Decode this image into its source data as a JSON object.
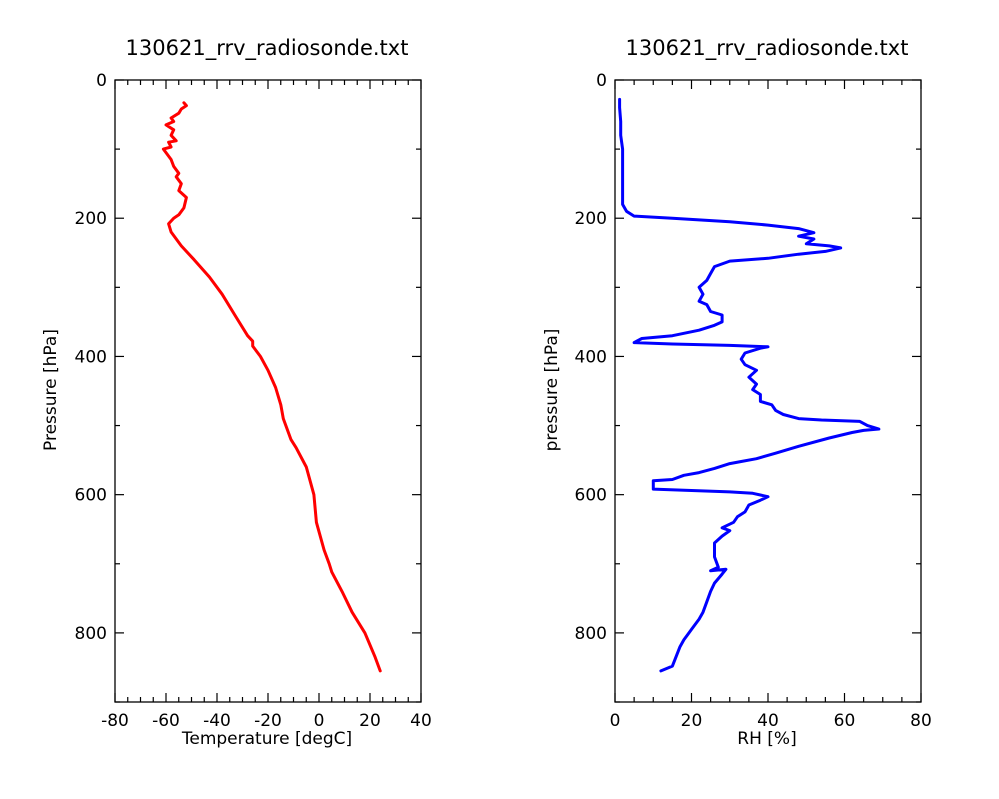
{
  "chart_data": [
    {
      "type": "line",
      "title": "130621_rrv_radiosonde.txt",
      "xlabel": "Temperature [degC]",
      "ylabel": "Pressure [hPa]",
      "xlim": [
        -80,
        40
      ],
      "ylim": [
        900,
        0
      ],
      "y_inverted": true,
      "grid": false,
      "xticks": [
        -80,
        -60,
        -40,
        -20,
        0,
        20,
        40
      ],
      "yticks": [
        0,
        200,
        400,
        600,
        800
      ],
      "series": [
        {
          "color": "#ff0000",
          "points": [
            [
              24,
              855
            ],
            [
              22,
              835
            ],
            [
              18,
              800
            ],
            [
              13,
              770
            ],
            [
              9,
              740
            ],
            [
              5,
              712
            ],
            [
              4,
              700
            ],
            [
              2,
              680
            ],
            [
              -1,
              640
            ],
            [
              -2,
              600
            ],
            [
              -5,
              560
            ],
            [
              -9,
              532
            ],
            [
              -11,
              520
            ],
            [
              -14,
              490
            ],
            [
              -15,
              470
            ],
            [
              -17,
              445
            ],
            [
              -20,
              420
            ],
            [
              -23,
              400
            ],
            [
              -26,
              385
            ],
            [
              -26,
              378
            ],
            [
              -28,
              370
            ],
            [
              -33,
              340
            ],
            [
              -38,
              310
            ],
            [
              -43,
              285
            ],
            [
              -49,
              260
            ],
            [
              -54,
              240
            ],
            [
              -58,
              220
            ],
            [
              -59,
              208
            ],
            [
              -57,
              200
            ],
            [
              -55,
              195
            ],
            [
              -53,
              185
            ],
            [
              -52,
              170
            ],
            [
              -55,
              160
            ],
            [
              -54,
              150
            ],
            [
              -56,
              140
            ],
            [
              -55,
              135
            ],
            [
              -57,
              125
            ],
            [
              -58,
              115
            ],
            [
              -60,
              105
            ],
            [
              -61,
              100
            ],
            [
              -58,
              97
            ],
            [
              -59,
              90
            ],
            [
              -56,
              88
            ],
            [
              -58,
              80
            ],
            [
              -57,
              72
            ],
            [
              -60,
              65
            ],
            [
              -57,
              60
            ],
            [
              -58,
              55
            ],
            [
              -55,
              48
            ],
            [
              -54,
              42
            ],
            [
              -52,
              37
            ],
            [
              -53,
              33
            ]
          ]
        }
      ]
    },
    {
      "type": "line",
      "title": "130621_rrv_radiosonde.txt",
      "xlabel": "RH [%]",
      "ylabel": "pressure [hPa]",
      "xlim": [
        0,
        80
      ],
      "ylim": [
        900,
        0
      ],
      "y_inverted": true,
      "grid": false,
      "xticks": [
        0,
        20,
        40,
        60,
        80
      ],
      "yticks": [
        0,
        200,
        400,
        600,
        800
      ],
      "series": [
        {
          "color": "#0000ff",
          "points": [
            [
              12,
              855
            ],
            [
              15,
              848
            ],
            [
              17,
              820
            ],
            [
              18,
              810
            ],
            [
              20,
              795
            ],
            [
              22,
              780
            ],
            [
              23,
              770
            ],
            [
              24,
              755
            ],
            [
              25,
              740
            ],
            [
              26,
              728
            ],
            [
              28,
              715
            ],
            [
              29,
              708
            ],
            [
              25,
              710
            ],
            [
              27,
              705
            ],
            [
              26,
              690
            ],
            [
              26,
              670
            ],
            [
              28,
              660
            ],
            [
              30,
              652
            ],
            [
              28,
              648
            ],
            [
              31,
              640
            ],
            [
              32,
              632
            ],
            [
              34,
              625
            ],
            [
              35,
              615
            ],
            [
              38,
              608
            ],
            [
              40,
              603
            ],
            [
              36,
              598
            ],
            [
              30,
              596
            ],
            [
              20,
              594
            ],
            [
              10,
              592
            ],
            [
              10,
              580
            ],
            [
              15,
              578
            ],
            [
              18,
              572
            ],
            [
              22,
              568
            ],
            [
              26,
              562
            ],
            [
              30,
              555
            ],
            [
              33,
              552
            ],
            [
              37,
              548
            ],
            [
              42,
              540
            ],
            [
              48,
              530
            ],
            [
              56,
              518
            ],
            [
              62,
              510
            ],
            [
              65,
              507
            ],
            [
              69,
              505
            ],
            [
              66,
              500
            ],
            [
              64,
              494
            ],
            [
              54,
              492
            ],
            [
              48,
              490
            ],
            [
              44,
              484
            ],
            [
              42,
              478
            ],
            [
              41,
              470
            ],
            [
              38,
              465
            ],
            [
              38,
              455
            ],
            [
              36,
              448
            ],
            [
              37,
              440
            ],
            [
              35,
              430
            ],
            [
              37,
              420
            ],
            [
              34,
              412
            ],
            [
              33,
              404
            ],
            [
              34,
              395
            ],
            [
              38,
              388
            ],
            [
              40,
              386
            ],
            [
              30,
              384
            ],
            [
              15,
              382
            ],
            [
              5,
              380
            ],
            [
              7,
              374
            ],
            [
              15,
              370
            ],
            [
              22,
              362
            ],
            [
              26,
              355
            ],
            [
              28,
              350
            ],
            [
              28,
              340
            ],
            [
              25,
              335
            ],
            [
              24,
              325
            ],
            [
              22,
              320
            ],
            [
              23,
              310
            ],
            [
              22,
              300
            ],
            [
              24,
              290
            ],
            [
              25,
              280
            ],
            [
              26,
              270
            ],
            [
              30,
              262
            ],
            [
              40,
              258
            ],
            [
              48,
              252
            ],
            [
              55,
              248
            ],
            [
              59,
              243
            ],
            [
              56,
              240
            ],
            [
              50,
              237
            ],
            [
              52,
              230
            ],
            [
              48,
              226
            ],
            [
              52,
              221
            ],
            [
              48,
              215
            ],
            [
              40,
              210
            ],
            [
              30,
              205
            ],
            [
              15,
              200
            ],
            [
              5,
              197
            ],
            [
              3,
              190
            ],
            [
              2,
              180
            ],
            [
              2,
              160
            ],
            [
              2,
              140
            ],
            [
              2,
              120
            ],
            [
              2,
              100
            ],
            [
              1.5,
              80
            ],
            [
              1.5,
              60
            ],
            [
              1.2,
              40
            ],
            [
              1.2,
              28
            ]
          ]
        }
      ]
    }
  ]
}
